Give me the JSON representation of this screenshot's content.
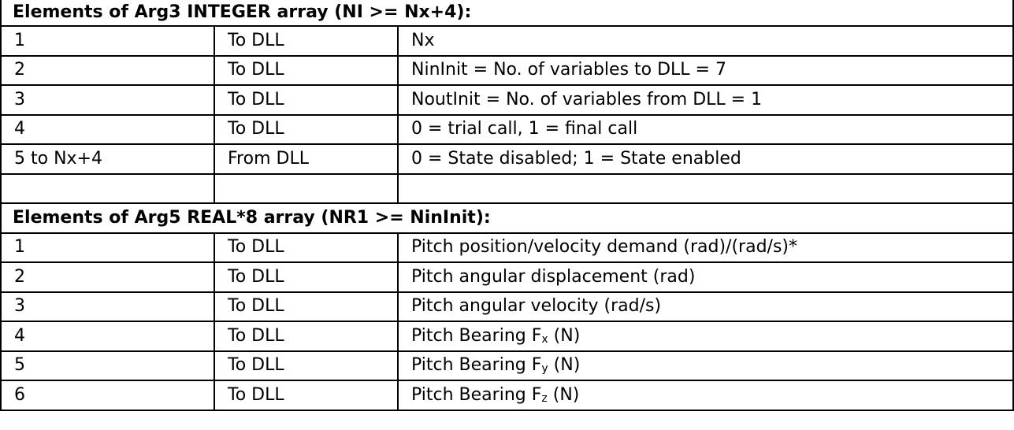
{
  "sections": [
    {
      "title": "Elements of Arg3 INTEGER array (NI >= Nx+4):",
      "rows": [
        {
          "index": "1",
          "direction": "To DLL",
          "description": "Nx"
        },
        {
          "index": "2",
          "direction": "To DLL",
          "description": "NinInit = No. of variables to DLL = 7"
        },
        {
          "index": "3",
          "direction": "To DLL",
          "description": "NoutInit = No. of variables from DLL = 1"
        },
        {
          "index": "4",
          "direction": "To DLL",
          "description": "0 = trial call, 1 = final call"
        },
        {
          "index": "5 to Nx+4",
          "direction": "From DLL",
          "description": "0 = State disabled; 1 = State enabled"
        },
        {
          "index": "",
          "direction": "",
          "description": ""
        }
      ]
    },
    {
      "title": "Elements of Arg5 REAL*8 array (NR1 >= NinInit):",
      "rows": [
        {
          "index": "1",
          "direction": "To DLL",
          "description": "Pitch position/velocity demand (rad)/(rad/s)*"
        },
        {
          "index": "2",
          "direction": "To DLL",
          "description": "Pitch angular displacement (rad)"
        },
        {
          "index": "3",
          "direction": "To DLL",
          "description": "Pitch angular velocity (rad/s)"
        },
        {
          "index": "4",
          "direction": "To DLL",
          "description": "Pitch Bearing F",
          "sub": "x",
          "suffix": " (N)"
        },
        {
          "index": "5",
          "direction": "To DLL",
          "description": "Pitch Bearing F",
          "sub": "y",
          "suffix": " (N)"
        },
        {
          "index": "6",
          "direction": "To DLL",
          "description": "Pitch Bearing F",
          "sub": "z",
          "suffix": " (N)"
        }
      ]
    }
  ]
}
